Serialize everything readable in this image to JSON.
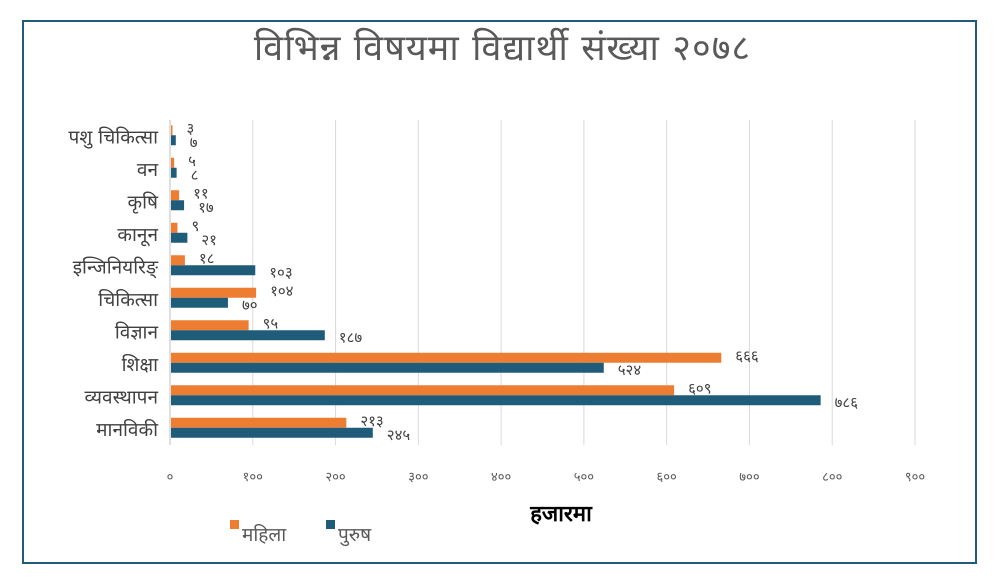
{
  "chart_data": {
    "type": "bar",
    "orientation": "horizontal",
    "title": "विभिन्न विषयमा विद्यार्थी संख्या २०७८",
    "xlabel": "हजारमा",
    "ylabel": "",
    "categories": [
      "पशु चिकित्सा",
      "वन",
      "कृषि",
      "कानून",
      "इन्जिनियरिङ्",
      "चिकित्सा",
      "विज्ञान",
      "शिक्षा",
      "व्यवस्थापन",
      "मानविकी"
    ],
    "series": [
      {
        "name": "महिला",
        "color": "#ed7d31",
        "values": [
          3,
          5,
          11,
          9,
          18,
          104,
          95,
          666,
          609,
          213
        ],
        "labels": [
          "३",
          "५",
          "११",
          "९",
          "१८",
          "१०४",
          "९५",
          "६६६",
          "६०९",
          "२१३"
        ]
      },
      {
        "name": "पुरुष",
        "color": "#1f5c7a",
        "values": [
          7,
          8,
          17,
          21,
          103,
          70,
          187,
          524,
          786,
          245
        ],
        "labels": [
          "७",
          "८",
          "१७",
          "२१",
          "१०३",
          "७०",
          "१८७",
          "५२४",
          "७८६",
          "२४५"
        ]
      }
    ],
    "xlim": [
      0,
      900
    ],
    "xticks": [
      0,
      100,
      200,
      300,
      400,
      500,
      600,
      700,
      800,
      900
    ],
    "xtick_labels": [
      "०",
      "१००",
      "२००",
      "३००",
      "४००",
      "५००",
      "६००",
      "७००",
      "८००",
      "९००"
    ],
    "grid": true,
    "legend_position": "bottom-left"
  },
  "colors": {
    "border": "#1f5c7a",
    "grid": "#d9d9d9"
  }
}
